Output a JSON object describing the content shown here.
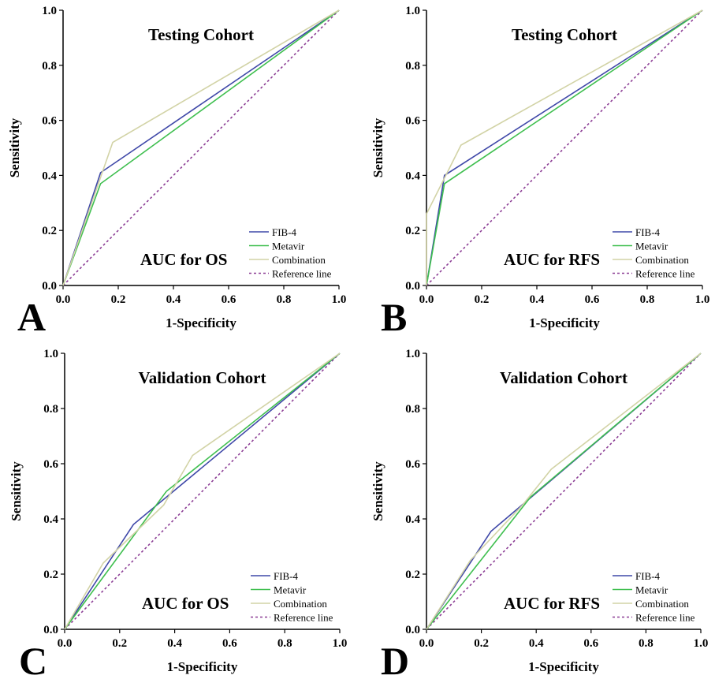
{
  "chart_data": [
    {
      "type": "line",
      "panel_letter": "A",
      "title": "Testing Cohort",
      "annotation": "AUC for OS",
      "xlabel": "1-Specificity",
      "ylabel": "Sensitivity",
      "xlim": [
        0,
        1
      ],
      "ylim": [
        0,
        1
      ],
      "xticks": [
        "0.0",
        "0.2",
        "0.4",
        "0.6",
        "0.8",
        "1.0"
      ],
      "yticks": [
        "0.0",
        "0.2",
        "0.4",
        "0.6",
        "0.8",
        "1.0"
      ],
      "legend_position": "bottom-right",
      "series": [
        {
          "name": "FIB-4",
          "color": "#3f48a8",
          "dashed": false,
          "x": [
            0,
            0.136,
            1
          ],
          "y": [
            0,
            0.41,
            1
          ]
        },
        {
          "name": "Metavir",
          "color": "#3fbf4f",
          "dashed": false,
          "x": [
            0,
            0.136,
            1
          ],
          "y": [
            0,
            0.37,
            1
          ]
        },
        {
          "name": "Combination",
          "color": "#d2d3a6",
          "dashed": false,
          "x": [
            0,
            0.18,
            1
          ],
          "y": [
            0,
            0.52,
            1
          ]
        },
        {
          "name": "Reference line",
          "color": "#8c3e95",
          "dashed": true,
          "x": [
            0,
            1
          ],
          "y": [
            0,
            1
          ]
        }
      ]
    },
    {
      "type": "line",
      "panel_letter": "B",
      "title": "Testing Cohort",
      "annotation": "AUC for RFS",
      "xlabel": "1-Specificity",
      "ylabel": "Sensitivity",
      "xlim": [
        0,
        1
      ],
      "ylim": [
        0,
        1
      ],
      "xticks": [
        "0.0",
        "0.2",
        "0.4",
        "0.6",
        "0.8",
        "1.0"
      ],
      "yticks": [
        "0.0",
        "0.2",
        "0.4",
        "0.6",
        "0.8",
        "1.0"
      ],
      "legend_position": "bottom-right",
      "series": [
        {
          "name": "FIB-4",
          "color": "#3f48a8",
          "dashed": false,
          "x": [
            0,
            0.065,
            1
          ],
          "y": [
            0,
            0.4,
            1
          ]
        },
        {
          "name": "Metavir",
          "color": "#3fbf4f",
          "dashed": false,
          "x": [
            0,
            0.065,
            1
          ],
          "y": [
            0,
            0.37,
            1
          ]
        },
        {
          "name": "Combination",
          "color": "#d2d3a6",
          "dashed": false,
          "x": [
            0,
            0,
            0.125,
            1
          ],
          "y": [
            0,
            0.26,
            0.51,
            1
          ]
        },
        {
          "name": "Reference line",
          "color": "#8c3e95",
          "dashed": true,
          "x": [
            0,
            1
          ],
          "y": [
            0,
            1
          ]
        }
      ]
    },
    {
      "type": "line",
      "panel_letter": "C",
      "title": "Validation Cohort",
      "annotation": "AUC for OS",
      "xlabel": "1-Specificity",
      "ylabel": "Sensitivity",
      "xlim": [
        0,
        1
      ],
      "ylim": [
        0,
        1
      ],
      "xticks": [
        "0.0",
        "0.2",
        "0.4",
        "0.6",
        "0.8",
        "1.0"
      ],
      "yticks": [
        "0.0",
        "0.2",
        "0.4",
        "0.6",
        "0.8",
        "1.0"
      ],
      "legend_position": "bottom-right",
      "series": [
        {
          "name": "FIB-4",
          "color": "#3f48a8",
          "dashed": false,
          "x": [
            0,
            0.25,
            1
          ],
          "y": [
            0,
            0.38,
            1
          ]
        },
        {
          "name": "Metavir",
          "color": "#3fbf4f",
          "dashed": false,
          "x": [
            0,
            0.37,
            1
          ],
          "y": [
            0,
            0.5,
            1
          ]
        },
        {
          "name": "Combination",
          "color": "#d2d3a6",
          "dashed": false,
          "x": [
            0,
            0.14,
            0.36,
            0.465,
            1
          ],
          "y": [
            0,
            0.24,
            0.45,
            0.63,
            1
          ]
        },
        {
          "name": "Reference line",
          "color": "#8c3e95",
          "dashed": true,
          "x": [
            0,
            1
          ],
          "y": [
            0,
            1
          ]
        }
      ]
    },
    {
      "type": "line",
      "panel_letter": "D",
      "title": "Validation Cohort",
      "annotation": "AUC for RFS",
      "xlabel": "1-Specificity",
      "ylabel": "Sensitivity",
      "xlim": [
        0,
        1
      ],
      "ylim": [
        0,
        1
      ],
      "xticks": [
        "0.0",
        "0.2",
        "0.4",
        "0.6",
        "0.8",
        "1.0"
      ],
      "yticks": [
        "0.0",
        "0.2",
        "0.4",
        "0.6",
        "0.8",
        "1.0"
      ],
      "legend_position": "bottom-right",
      "series": [
        {
          "name": "FIB-4",
          "color": "#3f48a8",
          "dashed": false,
          "x": [
            0,
            0.235,
            1
          ],
          "y": [
            0,
            0.355,
            1
          ]
        },
        {
          "name": "Metavir",
          "color": "#3fbf4f",
          "dashed": false,
          "x": [
            0,
            0.38,
            1
          ],
          "y": [
            0,
            0.48,
            1
          ]
        },
        {
          "name": "Combination",
          "color": "#d2d3a6",
          "dashed": false,
          "x": [
            0,
            0.16,
            0.35,
            0.455,
            1
          ],
          "y": [
            0,
            0.25,
            0.45,
            0.58,
            1
          ]
        },
        {
          "name": "Reference line",
          "color": "#8c3e95",
          "dashed": true,
          "x": [
            0,
            1
          ],
          "y": [
            0,
            1
          ]
        }
      ]
    }
  ]
}
